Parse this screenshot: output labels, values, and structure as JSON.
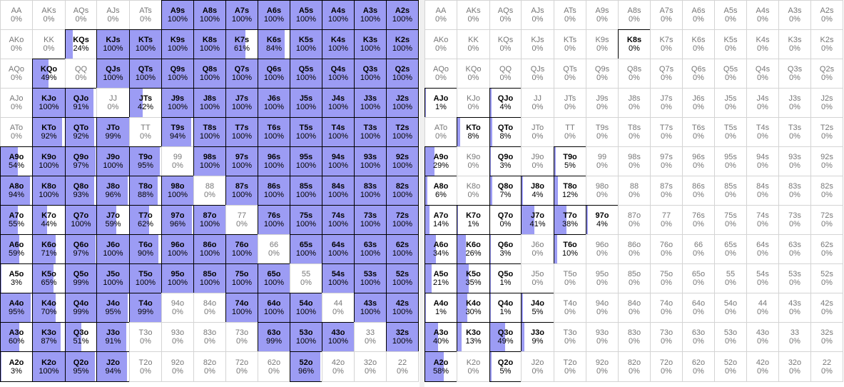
{
  "ranks": [
    "A",
    "K",
    "Q",
    "J",
    "T",
    "9",
    "8",
    "7",
    "6",
    "5",
    "4",
    "3",
    "2"
  ],
  "charts": [
    {
      "name": "left-range",
      "pct": [
        [
          "0%",
          "0%",
          "0%",
          "0%",
          "0%",
          "100%",
          "100%",
          "100%",
          "100%",
          "100%",
          "100%",
          "100%",
          "100%"
        ],
        [
          "0%",
          "0%",
          "24%",
          "100%",
          "100%",
          "100%",
          "100%",
          "61%",
          "84%",
          "100%",
          "100%",
          "100%",
          "100%"
        ],
        [
          "0%",
          "49%",
          "0%",
          "100%",
          "100%",
          "100%",
          "100%",
          "100%",
          "100%",
          "100%",
          "100%",
          "100%",
          "100%"
        ],
        [
          "0%",
          "100%",
          "91%",
          "0%",
          "42%",
          "100%",
          "100%",
          "100%",
          "100%",
          "100%",
          "100%",
          "100%",
          "100%"
        ],
        [
          "0%",
          "92%",
          "92%",
          "99%",
          "0%",
          "94%",
          "100%",
          "100%",
          "100%",
          "100%",
          "100%",
          "100%",
          "100%"
        ],
        [
          "54%",
          "100%",
          "97%",
          "100%",
          "95%",
          "0%",
          "100%",
          "100%",
          "100%",
          "100%",
          "100%",
          "100%",
          "100%"
        ],
        [
          "94%",
          "100%",
          "93%",
          "96%",
          "88%",
          "100%",
          "0%",
          "100%",
          "100%",
          "100%",
          "100%",
          "100%",
          "100%"
        ],
        [
          "55%",
          "44%",
          "100%",
          "59%",
          "62%",
          "96%",
          "100%",
          "0%",
          "100%",
          "100%",
          "100%",
          "100%",
          "100%"
        ],
        [
          "59%",
          "71%",
          "97%",
          "100%",
          "90%",
          "100%",
          "100%",
          "100%",
          "0%",
          "100%",
          "100%",
          "100%",
          "100%"
        ],
        [
          "3%",
          "65%",
          "99%",
          "100%",
          "100%",
          "100%",
          "100%",
          "100%",
          "100%",
          "0%",
          "100%",
          "100%",
          "100%"
        ],
        [
          "95%",
          "70%",
          "99%",
          "95%",
          "99%",
          "0%",
          "0%",
          "100%",
          "100%",
          "100%",
          "0%",
          "100%",
          "100%"
        ],
        [
          "60%",
          "87%",
          "51%",
          "91%",
          "0%",
          "0%",
          "0%",
          "0%",
          "99%",
          "100%",
          "100%",
          "0%",
          "100%"
        ],
        [
          "3%",
          "100%",
          "95%",
          "94%",
          "0%",
          "0%",
          "0%",
          "0%",
          "0%",
          "96%",
          "0%",
          "0%",
          "0%"
        ]
      ]
    },
    {
      "name": "right-range",
      "pct": [
        [
          "0%",
          "0%",
          "0%",
          "0%",
          "0%",
          "0%",
          "0%",
          "0%",
          "0%",
          "0%",
          "0%",
          "0%",
          "0%"
        ],
        [
          "0%",
          "0%",
          "0%",
          "0%",
          "0%",
          "0%",
          "0%",
          "0%",
          "0%",
          "0%",
          "0%",
          "0%",
          "0%"
        ],
        [
          "0%",
          "0%",
          "0%",
          "0%",
          "0%",
          "0%",
          "0%",
          "0%",
          "0%",
          "0%",
          "0%",
          "0%",
          "0%"
        ],
        [
          "1%",
          "0%",
          "4%",
          "0%",
          "0%",
          "0%",
          "0%",
          "0%",
          "0%",
          "0%",
          "0%",
          "0%",
          "0%"
        ],
        [
          "0%",
          "8%",
          "8%",
          "0%",
          "0%",
          "0%",
          "0%",
          "0%",
          "0%",
          "0%",
          "0%",
          "0%",
          "0%"
        ],
        [
          "29%",
          "0%",
          "3%",
          "0%",
          "5%",
          "0%",
          "0%",
          "0%",
          "0%",
          "0%",
          "0%",
          "0%",
          "0%"
        ],
        [
          "6%",
          "0%",
          "7%",
          "4%",
          "12%",
          "0%",
          "0%",
          "0%",
          "0%",
          "0%",
          "0%",
          "0%",
          "0%"
        ],
        [
          "14%",
          "1%",
          "0%",
          "41%",
          "38%",
          "4%",
          "0%",
          "0%",
          "0%",
          "0%",
          "0%",
          "0%",
          "0%"
        ],
        [
          "34%",
          "26%",
          "3%",
          "0%",
          "10%",
          "0%",
          "0%",
          "0%",
          "0%",
          "0%",
          "0%",
          "0%",
          "0%"
        ],
        [
          "21%",
          "35%",
          "1%",
          "0%",
          "0%",
          "0%",
          "0%",
          "0%",
          "0%",
          "0%",
          "0%",
          "0%",
          "0%"
        ],
        [
          "1%",
          "30%",
          "1%",
          "5%",
          "0%",
          "0%",
          "0%",
          "0%",
          "0%",
          "0%",
          "0%",
          "0%",
          "0%"
        ],
        [
          "40%",
          "13%",
          "49%",
          "9%",
          "0%",
          "0%",
          "0%",
          "0%",
          "0%",
          "0%",
          "0%",
          "0%",
          "0%"
        ],
        [
          "58%",
          "0%",
          "5%",
          "0%",
          "0%",
          "0%",
          "0%",
          "0%",
          "0%",
          "0%",
          "0%",
          "0%",
          "0%"
        ]
      ],
      "outlined_zero": [
        [
          7,
          2
        ],
        [
          1,
          6
        ]
      ]
    }
  ],
  "colors": {
    "fill": "#9c9cf4",
    "border_active": "#000000",
    "border_inactive": "#d4d4d4",
    "text_inactive": "#777777"
  }
}
